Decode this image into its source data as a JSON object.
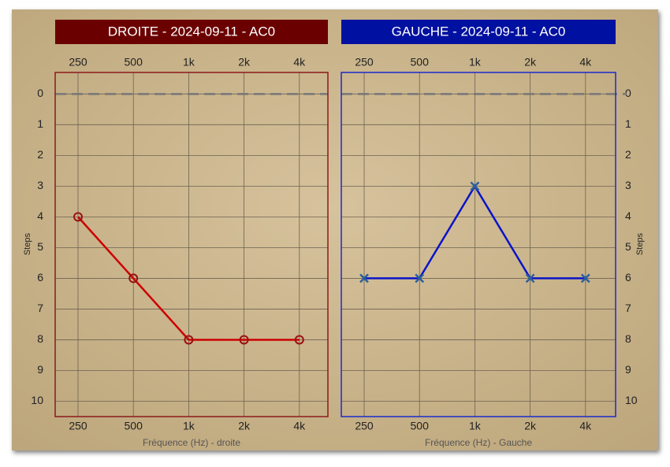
{
  "chart_data": [
    {
      "type": "line",
      "title": "DROITE - 2024-09-11 - AC0",
      "title_color": "#6b0000",
      "frame_color": "#8b1a1a",
      "categories": [
        "250",
        "500",
        "1k",
        "2k",
        "4k"
      ],
      "values": [
        4,
        6,
        8,
        8,
        8
      ],
      "color": "#cc0000",
      "marker": "circle",
      "x_label": "Fréquence (Hz) - droite",
      "y_label": "Steps",
      "y_axis_side": "left",
      "ylim": [
        -0.7,
        10.5
      ],
      "yticks": [
        0,
        1,
        2,
        3,
        4,
        5,
        6,
        7,
        8,
        9,
        10
      ],
      "y_inverted": true,
      "grid": true,
      "reference_line": 0
    },
    {
      "type": "line",
      "title": "GAUCHE - 2024-09-11 - AC0",
      "title_color": "#0010a0",
      "frame_color": "#1a2acc",
      "categories": [
        "250",
        "500",
        "1k",
        "2k",
        "4k"
      ],
      "values": [
        6,
        6,
        3,
        6,
        6
      ],
      "color": "#0a14c8",
      "marker": "x",
      "x_label": "Fréquence (Hz) - Gauche",
      "y_label": "Steps",
      "y_axis_side": "right",
      "ylim": [
        -0.7,
        10.5
      ],
      "yticks": [
        0,
        1,
        2,
        3,
        4,
        5,
        6,
        7,
        8,
        9,
        10
      ],
      "y_inverted": true,
      "grid": true,
      "reference_line": 0
    }
  ]
}
